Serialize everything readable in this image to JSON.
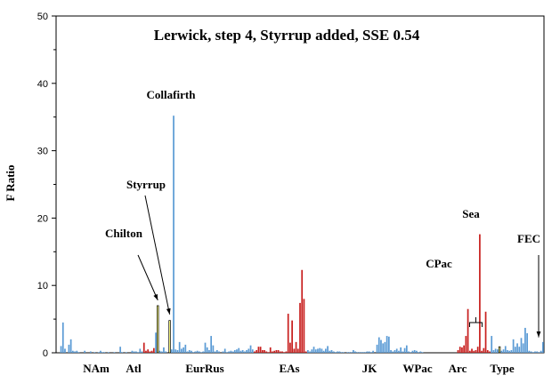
{
  "chart_data": {
    "type": "bar",
    "title": "Lerwick, step 4, Styrrup added, SSE 0.54",
    "xlabel": "",
    "ylabel": "F Ratio",
    "ylim": [
      0,
      50
    ],
    "yticks": [
      0,
      10,
      20,
      30,
      40,
      50
    ],
    "grid": false,
    "colors": {
      "blue": "#5b9bd5",
      "red": "#c8201f",
      "yellow": "#ffff80"
    },
    "groups": [
      "NAm",
      "Atl",
      "EurRus",
      "EAs",
      "JK",
      "WPac",
      "Arc",
      "Type"
    ],
    "annotations": [
      {
        "text": "Collafirth",
        "target_bar": 59
      },
      {
        "text": "Styrrup",
        "target_bar": 57
      },
      {
        "text": "Chilton",
        "target_bar": 51
      },
      {
        "text": "Sea",
        "target_bar": 224
      },
      {
        "text": "CPac",
        "target_bar": 212
      },
      {
        "text": "FEC",
        "target_bar": 264
      }
    ],
    "values": [
      0,
      0,
      1,
      4.5,
      0.6,
      0,
      1.2,
      2,
      0.3,
      0.2,
      0.3,
      0.1,
      0,
      0,
      0.3,
      0,
      0,
      0.2,
      0,
      0.1,
      0,
      0.1,
      0.3,
      0.1,
      0.1,
      0,
      0.1,
      0,
      0,
      0.1,
      0,
      0,
      0.9,
      0.1,
      0,
      0.1,
      0,
      0,
      0.3,
      0.2,
      0.2,
      0.1,
      0.6,
      0.2,
      1.5,
      0.3,
      0.5,
      0.2,
      0.3,
      0.7,
      3,
      7,
      0.3,
      0.2,
      0.8,
      0.2,
      0,
      4.8,
      0.5,
      35.2,
      0.5,
      0.4,
      1.6,
      0.6,
      0.8,
      1.2,
      0.2,
      0.4,
      0.3,
      0.1,
      0.2,
      0.3,
      0.2,
      0.1,
      0.2,
      1.5,
      0.8,
      0.4,
      2.5,
      1.1,
      0.2,
      0.4,
      0.2,
      0,
      0.2,
      0.6,
      0.1,
      0.2,
      0.3,
      0.2,
      0.4,
      0.5,
      0.7,
      0.3,
      0.4,
      0.2,
      0.4,
      0.6,
      1.1,
      0.5,
      0.2,
      0.4,
      0.9,
      0.9,
      0.4,
      0.4,
      0.2,
      0.1,
      0.8,
      0.2,
      0.3,
      0.4,
      0.4,
      0.2,
      0.2,
      0.1,
      0.2,
      5.8,
      1.5,
      4.8,
      0.6,
      1.6,
      0.6,
      7.4,
      12.3,
      8,
      0.2,
      0.4,
      0.2,
      0.5,
      0.9,
      0.5,
      0.6,
      0.7,
      0.6,
      0.3,
      0.6,
      1,
      0.3,
      0.4,
      0.2,
      0.1,
      0.2,
      0.2,
      0.1,
      0.1,
      0,
      0.1,
      0.1,
      0.1,
      0.4,
      0.2,
      0.1,
      0.1,
      0.1,
      0.1,
      0.1,
      0.2,
      0.2,
      0.1,
      0.3,
      0,
      1.2,
      2.3,
      1.9,
      1.4,
      1.6,
      2.5,
      2.4,
      0.4,
      0.2,
      0.4,
      0.6,
      0.3,
      0.8,
      0.2,
      0.7,
      1.1,
      0.2,
      0.1,
      0.3,
      0.4,
      0.3,
      0.1,
      0.2,
      0.1,
      0,
      0,
      0,
      0,
      0,
      0,
      0,
      0,
      0,
      0,
      0,
      0,
      0,
      0,
      0,
      0,
      0,
      0.4,
      0.9,
      0.8,
      1.1,
      2.5,
      6.5,
      0.3,
      0.6,
      0.3,
      0.4,
      0.9,
      17.6,
      0.3,
      0.7,
      6.1,
      0.4,
      0.2,
      2.5,
      0.4,
      0.6,
      0.5,
      0.9,
      0.3,
      0.5,
      1,
      0.4,
      0.3,
      0.4,
      2,
      0.9,
      1.4,
      0.9,
      2.2,
      1.4,
      3.7,
      2.9,
      0.3,
      0.2,
      0.1,
      0.2,
      0.2,
      0.1,
      0.3,
      1.6
    ],
    "series_colors_by_range": [
      {
        "from": 0,
        "to": 43,
        "color": "blue"
      },
      {
        "from": 44,
        "to": 49,
        "color": "red"
      },
      {
        "from": 50,
        "to": 50,
        "color": "blue"
      },
      {
        "from": 51,
        "to": 51,
        "color": "yellow"
      },
      {
        "from": 52,
        "to": 56,
        "color": "blue"
      },
      {
        "from": 57,
        "to": 57,
        "color": "yellow"
      },
      {
        "from": 58,
        "to": 99,
        "color": "blue"
      },
      {
        "from": 100,
        "to": 126,
        "color": "red"
      },
      {
        "from": 127,
        "to": 197,
        "color": "blue"
      },
      {
        "from": 198,
        "to": 202,
        "color": "red"
      },
      {
        "from": 203,
        "to": 219,
        "color": "red"
      },
      {
        "from": 220,
        "to": 223,
        "color": "blue"
      },
      {
        "from": 224,
        "to": 224,
        "color": "yellow"
      },
      {
        "from": 225,
        "to": 265,
        "color": "blue"
      }
    ]
  }
}
